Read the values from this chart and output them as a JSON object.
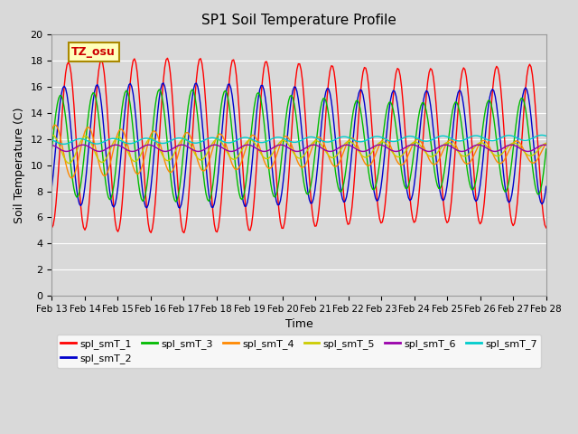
{
  "title": "SP1 Soil Temperature Profile",
  "xlabel": "Time",
  "ylabel": "Soil Temperature (C)",
  "ylim": [
    0,
    20
  ],
  "yticks": [
    0,
    2,
    4,
    6,
    8,
    10,
    12,
    14,
    16,
    18,
    20
  ],
  "date_labels": [
    "Feb 13",
    "Feb 14",
    "Feb 15",
    "Feb 16",
    "Feb 17",
    "Feb 18",
    "Feb 19",
    "Feb 20",
    "Feb 21",
    "Feb 22",
    "Feb 23",
    "Feb 24",
    "Feb 25",
    "Feb 26",
    "Feb 27",
    "Feb 28"
  ],
  "annotation_text": "TZ_osu",
  "series_colors": [
    "#ff0000",
    "#0000cc",
    "#00bb00",
    "#ff8800",
    "#cccc00",
    "#9900aa",
    "#00cccc"
  ],
  "series_labels": [
    "spl_smT_1",
    "spl_smT_2",
    "spl_smT_3",
    "spl_smT_4",
    "spl_smT_5",
    "spl_smT_6",
    "spl_smT_7"
  ],
  "background_color": "#d9d9d9",
  "plot_bg_color": "#d9d9d9",
  "figsize": [
    6.4,
    4.8
  ],
  "dpi": 100
}
